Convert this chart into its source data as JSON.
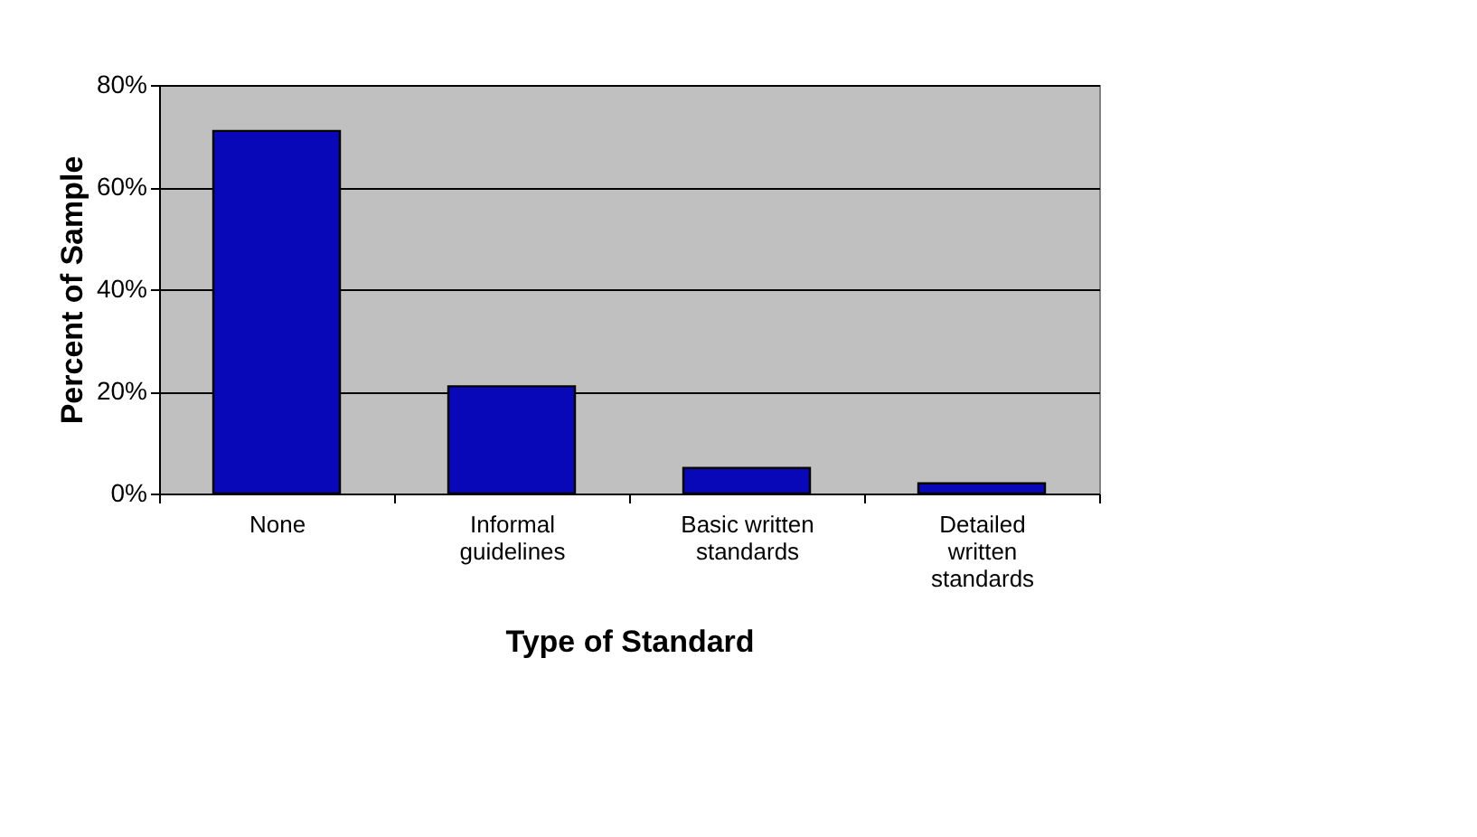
{
  "chart_data": {
    "type": "bar",
    "xlabel": "Type of Standard",
    "ylabel": "Percent of Sample",
    "categories": [
      "None",
      "Informal guidelines",
      "Basic written standards",
      "Detailed written standards"
    ],
    "values": [
      71,
      21,
      5,
      2
    ],
    "color": "#0808b8",
    "ylim": [
      0,
      80
    ],
    "yticks": [
      {
        "value": 0,
        "label": "0%"
      },
      {
        "value": 20,
        "label": "20%"
      },
      {
        "value": 40,
        "label": "40%"
      },
      {
        "value": 60,
        "label": "60%"
      },
      {
        "value": 80,
        "label": "80%"
      }
    ],
    "grid": "y"
  }
}
